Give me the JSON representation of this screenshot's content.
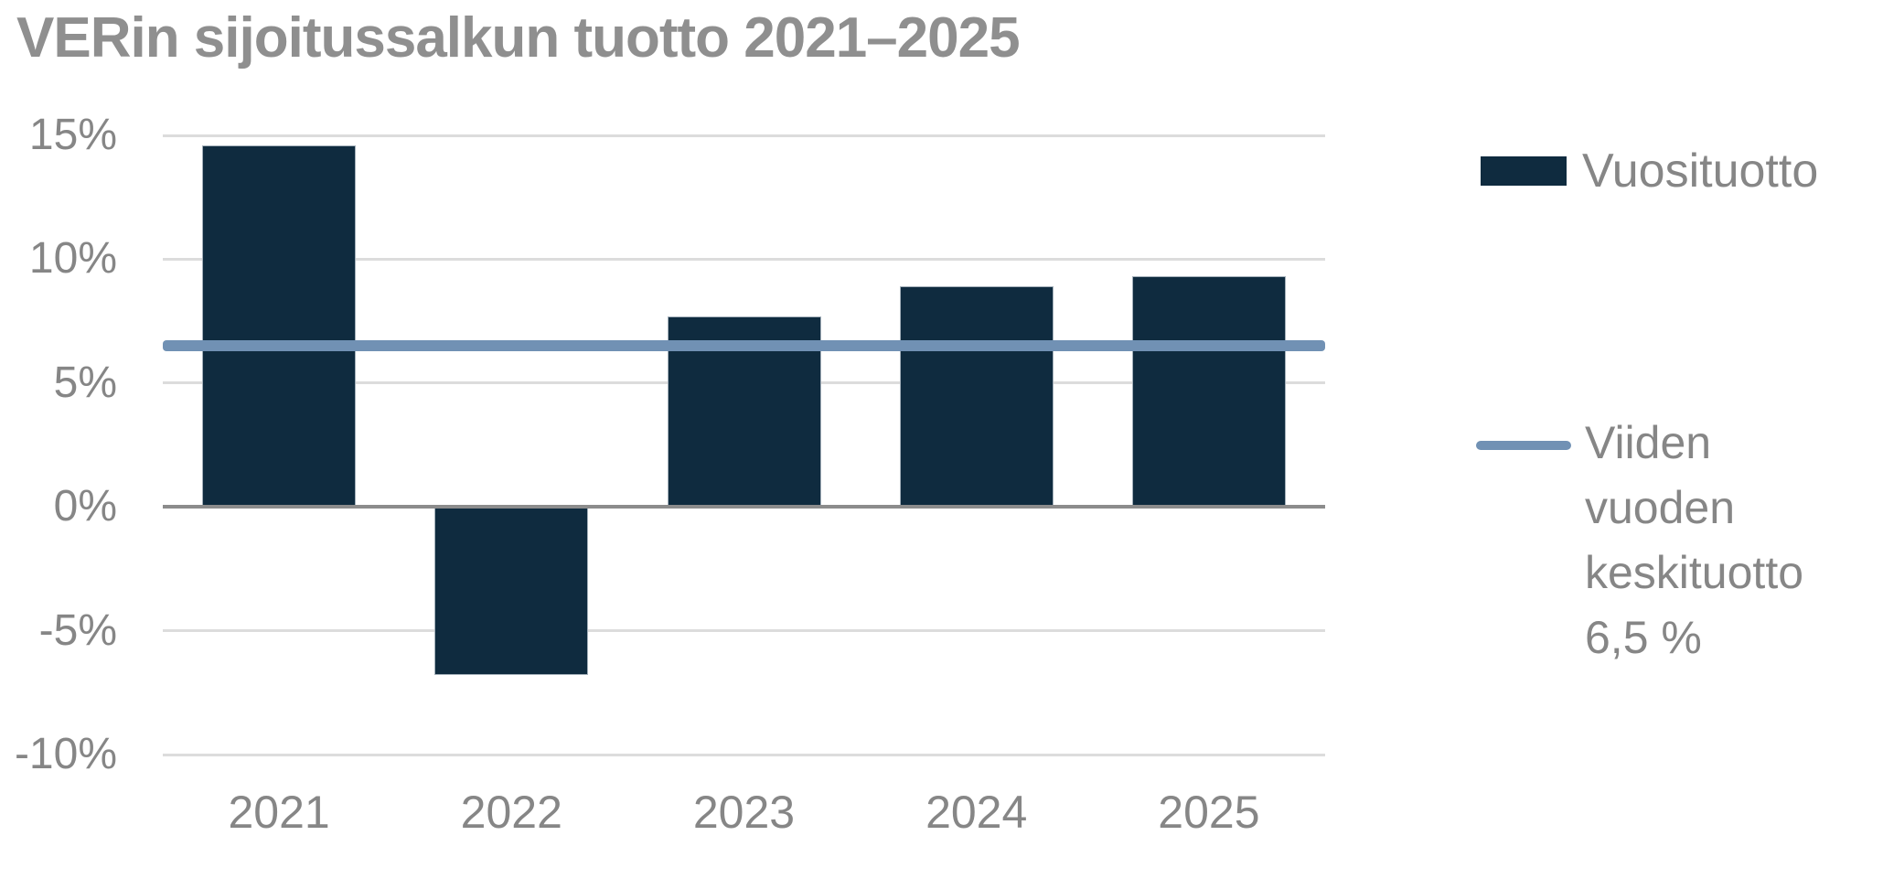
{
  "title": "VERin sijoitussalkun tuotto 2021–2025",
  "legend": {
    "bar_label": "Vuosituotto",
    "line_label": "Viiden\nvuoden\nkeskituotto\n6,5 %"
  },
  "colors": {
    "bar": "#0F2B3F",
    "avg_line": "#7191B4",
    "gridline": "#DCDCDC",
    "zero_line": "#8C8C8C",
    "text": "#868686",
    "title_text": "#8F8F8F"
  },
  "chart_data": {
    "type": "bar",
    "title": "VERin sijoitussalkun tuotto 2021–2025",
    "categories": [
      "2021",
      "2022",
      "2023",
      "2024",
      "2025"
    ],
    "series": [
      {
        "name": "Vuosituotto",
        "type": "bar",
        "values": [
          14.6,
          -6.8,
          7.7,
          8.9,
          9.3
        ]
      },
      {
        "name": "Viiden vuoden keskituotto",
        "type": "line",
        "value": 6.5
      }
    ],
    "xlabel": "",
    "ylabel": "",
    "ylim": [
      -10,
      15
    ],
    "y_ticks": [
      15,
      10,
      5,
      0,
      -5,
      -10
    ],
    "y_tick_labels": [
      "15%",
      "10%",
      "5%",
      "0%",
      "-5%",
      "-10%"
    ],
    "grid": true,
    "legend_position": "right"
  }
}
